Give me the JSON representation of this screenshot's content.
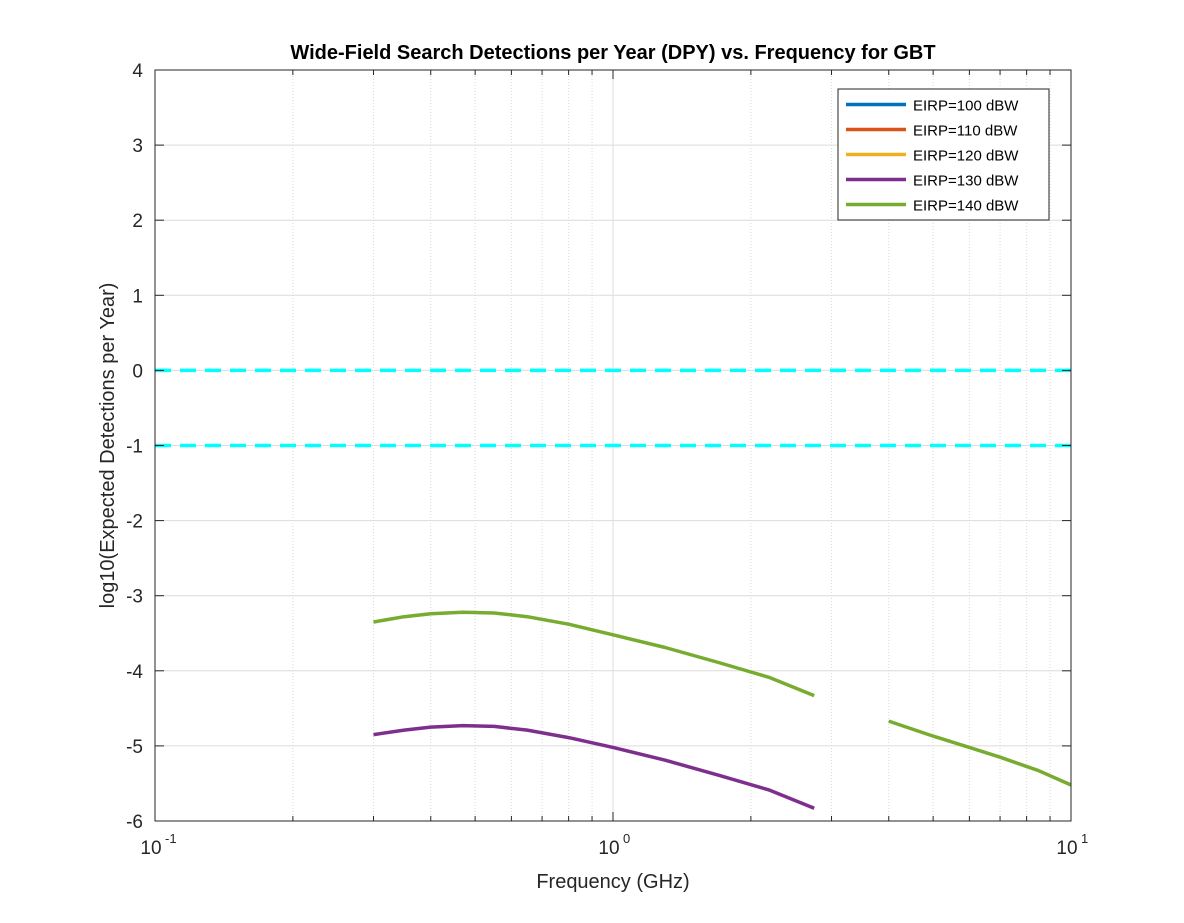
{
  "chart_data": {
    "type": "line",
    "title": "Wide-Field Search Detections per Year (DPY) vs. Frequency for GBT",
    "xlabel": "Frequency (GHz)",
    "ylabel": "log10(Expected Detections per Year)",
    "x_scale": "log",
    "xlim": [
      0.1,
      10
    ],
    "ylim": [
      -6,
      4
    ],
    "x_ticks": [
      {
        "value": 0.1,
        "base": "10",
        "exp": "-1"
      },
      {
        "value": 1,
        "base": "10",
        "exp": "0"
      },
      {
        "value": 10,
        "base": "10",
        "exp": "1"
      }
    ],
    "y_ticks": [
      4,
      3,
      2,
      1,
      0,
      -1,
      -2,
      -3,
      -4,
      -5,
      -6
    ],
    "grid": true,
    "legend_position": "top-right",
    "series": [
      {
        "name": "EIRP=100 dBW",
        "color": "#0072BD",
        "segments": []
      },
      {
        "name": "EIRP=110 dBW",
        "color": "#D95319",
        "segments": []
      },
      {
        "name": "EIRP=120 dBW",
        "color": "#EDB120",
        "segments": []
      },
      {
        "name": "EIRP=130 dBW",
        "color": "#7E2F8E",
        "segments": [
          [
            [
              0.3,
              -4.85
            ],
            [
              0.35,
              -4.79
            ],
            [
              0.4,
              -4.75
            ],
            [
              0.47,
              -4.73
            ],
            [
              0.55,
              -4.74
            ],
            [
              0.65,
              -4.79
            ],
            [
              0.8,
              -4.89
            ],
            [
              1.0,
              -5.02
            ],
            [
              1.3,
              -5.19
            ],
            [
              1.7,
              -5.39
            ],
            [
              2.2,
              -5.59
            ],
            [
              2.75,
              -5.83
            ]
          ]
        ]
      },
      {
        "name": "EIRP=140 dBW",
        "color": "#77AC30",
        "segments": [
          [
            [
              0.3,
              -3.35
            ],
            [
              0.35,
              -3.28
            ],
            [
              0.4,
              -3.24
            ],
            [
              0.47,
              -3.22
            ],
            [
              0.55,
              -3.23
            ],
            [
              0.65,
              -3.28
            ],
            [
              0.8,
              -3.38
            ],
            [
              1.0,
              -3.52
            ],
            [
              1.3,
              -3.69
            ],
            [
              1.7,
              -3.89
            ],
            [
              2.2,
              -4.09
            ],
            [
              2.75,
              -4.33
            ]
          ],
          [
            [
              4.0,
              -4.67
            ],
            [
              5.0,
              -4.87
            ],
            [
              6.0,
              -5.02
            ],
            [
              7.0,
              -5.15
            ],
            [
              8.5,
              -5.33
            ],
            [
              10.0,
              -5.52
            ]
          ]
        ]
      }
    ],
    "reference_lines": [
      {
        "y": 0,
        "color": "#00FFFF",
        "style": "dashed"
      },
      {
        "y": -1,
        "color": "#00FFFF",
        "style": "dashed"
      }
    ]
  }
}
